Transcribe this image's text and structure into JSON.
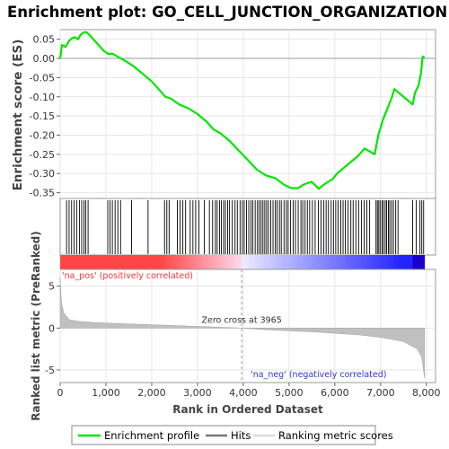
{
  "chart_data": {
    "type": "line",
    "title": "Enrichment plot: GO_CELL_JUNCTION_ORGANIZATION",
    "ylabel_top": "Enrichment score (ES)",
    "ylabel_bottom": "Ranked list metric (PreRanked)",
    "xlabel": "Rank in Ordered Dataset",
    "xlim": [
      0,
      8200
    ],
    "x_ticks": [
      0,
      1000,
      2000,
      3000,
      4000,
      5000,
      6000,
      7000,
      8000
    ],
    "x_tick_labels": [
      "0",
      "1,000",
      "2,000",
      "3,000",
      "4,000",
      "5,000",
      "6,000",
      "7,000",
      "8,000"
    ],
    "es_ylim": [
      -0.365,
      0.075
    ],
    "es_ticks": [
      0.05,
      0.0,
      -0.05,
      -0.1,
      -0.15,
      -0.2,
      -0.25,
      -0.3,
      -0.35
    ],
    "es_tick_labels": [
      "0.05",
      "0.00",
      "-0.05",
      "-0.10",
      "-0.15",
      "-0.20",
      "-0.25",
      "-0.30",
      "-0.35"
    ],
    "metric_ylim": [
      -6.5,
      7.0
    ],
    "metric_ticks": [
      5,
      0,
      -5
    ],
    "metric_tick_labels": [
      "5",
      "0",
      "-5"
    ],
    "series": [
      {
        "name": "Enrichment profile",
        "color": "#00e600",
        "points": [
          [
            0,
            0.0
          ],
          [
            40,
            0.035
          ],
          [
            120,
            0.03
          ],
          [
            190,
            0.045
          ],
          [
            250,
            0.052
          ],
          [
            320,
            0.055
          ],
          [
            390,
            0.05
          ],
          [
            450,
            0.062
          ],
          [
            520,
            0.068
          ],
          [
            580,
            0.068
          ],
          [
            650,
            0.06
          ],
          [
            800,
            0.04
          ],
          [
            950,
            0.02
          ],
          [
            1050,
            0.012
          ],
          [
            1150,
            0.012
          ],
          [
            1250,
            0.005
          ],
          [
            1400,
            -0.005
          ],
          [
            1600,
            -0.02
          ],
          [
            1800,
            -0.04
          ],
          [
            2000,
            -0.06
          ],
          [
            2150,
            -0.08
          ],
          [
            2300,
            -0.1
          ],
          [
            2350,
            -0.102
          ],
          [
            2420,
            -0.105
          ],
          [
            2600,
            -0.12
          ],
          [
            2800,
            -0.13
          ],
          [
            3000,
            -0.145
          ],
          [
            3200,
            -0.165
          ],
          [
            3350,
            -0.185
          ],
          [
            3500,
            -0.195
          ],
          [
            3700,
            -0.215
          ],
          [
            3900,
            -0.24
          ],
          [
            4100,
            -0.265
          ],
          [
            4300,
            -0.29
          ],
          [
            4500,
            -0.305
          ],
          [
            4700,
            -0.312
          ],
          [
            4900,
            -0.33
          ],
          [
            5050,
            -0.338
          ],
          [
            5200,
            -0.338
          ],
          [
            5300,
            -0.33
          ],
          [
            5400,
            -0.325
          ],
          [
            5500,
            -0.322
          ],
          [
            5650,
            -0.34
          ],
          [
            5750,
            -0.33
          ],
          [
            5850,
            -0.322
          ],
          [
            5950,
            -0.315
          ],
          [
            6050,
            -0.3
          ],
          [
            6200,
            -0.285
          ],
          [
            6350,
            -0.27
          ],
          [
            6500,
            -0.255
          ],
          [
            6650,
            -0.235
          ],
          [
            6800,
            -0.245
          ],
          [
            6870,
            -0.25
          ],
          [
            6950,
            -0.2
          ],
          [
            7050,
            -0.16
          ],
          [
            7150,
            -0.13
          ],
          [
            7250,
            -0.1
          ],
          [
            7300,
            -0.08
          ],
          [
            7450,
            -0.095
          ],
          [
            7600,
            -0.11
          ],
          [
            7700,
            -0.12
          ],
          [
            7750,
            -0.09
          ],
          [
            7830,
            -0.07
          ],
          [
            7880,
            -0.04
          ],
          [
            7920,
            0.005
          ],
          [
            7960,
            0.002
          ]
        ]
      },
      {
        "name": "Hits",
        "color": "#000000",
        "positions": [
          140,
          195,
          250,
          305,
          360,
          420,
          470,
          520,
          560,
          610,
          1040,
          1090,
          1140,
          1200,
          1260,
          1320,
          1560,
          1920,
          2280,
          2330,
          2380,
          2560,
          2620,
          2680,
          2740,
          2840,
          2900,
          2960,
          3030,
          3150,
          3260,
          3330,
          3390,
          3430,
          3480,
          3520,
          3570,
          3610,
          3660,
          3700,
          3760,
          3820,
          3870,
          3930,
          3980,
          4020,
          4070,
          4120,
          4170,
          4210,
          4260,
          4310,
          4350,
          4390,
          4430,
          4470,
          4510,
          4550,
          4600,
          4650,
          4700,
          4740,
          4790,
          4830,
          4890,
          4940,
          4980,
          5030,
          5090,
          5140,
          5200,
          5260,
          5300,
          5350,
          5400,
          5450,
          5510,
          5570,
          5640,
          5700,
          5760,
          5810,
          5860,
          5920,
          5970,
          6020,
          6070,
          6130,
          6180,
          6230,
          6290,
          6350,
          6400,
          6460,
          6520,
          6580,
          6640,
          6700,
          6760,
          6900,
          6930,
          6960,
          6990,
          7030,
          7060,
          7100,
          7130,
          7170,
          7200,
          7240,
          7280,
          7330,
          7380,
          7700,
          7780,
          7860,
          7900,
          7940
        ]
      },
      {
        "name": "Ranking metric scores",
        "color": "#c0c0c0",
        "points": [
          [
            0,
            6.0
          ],
          [
            30,
            3.0
          ],
          [
            80,
            1.8
          ],
          [
            200,
            1.0
          ],
          [
            400,
            0.8
          ],
          [
            800,
            0.65
          ],
          [
            1500,
            0.5
          ],
          [
            2500,
            0.3
          ],
          [
            3500,
            0.1
          ],
          [
            3965,
            0.0
          ],
          [
            4500,
            -0.2
          ],
          [
            5500,
            -0.45
          ],
          [
            6500,
            -0.8
          ],
          [
            7000,
            -1.1
          ],
          [
            7500,
            -1.6
          ],
          [
            7800,
            -2.5
          ],
          [
            7900,
            -3.5
          ],
          [
            7960,
            -6.0
          ]
        ]
      }
    ],
    "zero_cross_label": "Zero cross at 3965",
    "zero_cross": 3965,
    "pos_label": "'na_pos' (positively correlated)",
    "neg_label": "'na_neg' (negatively correlated)",
    "pos_color": "#ff0000",
    "neg_color": "#0000ff",
    "legend_position": "bottom"
  }
}
